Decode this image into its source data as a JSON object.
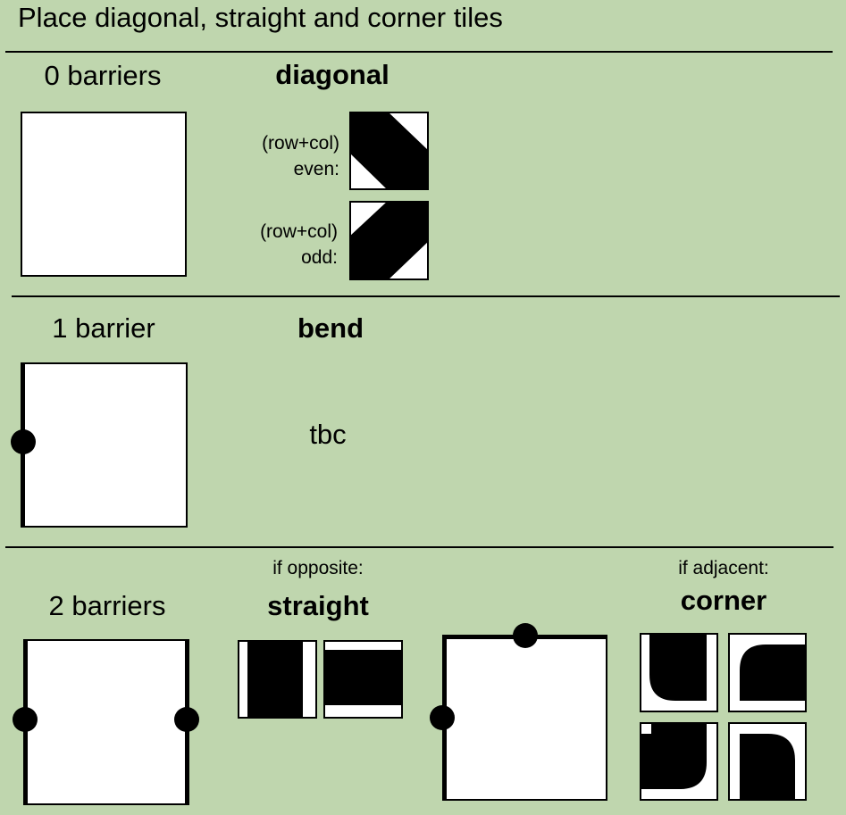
{
  "title": "Place diagonal, straight and corner tiles",
  "section_zero": {
    "heading": "0 barriers",
    "tile_heading": "diagonal",
    "even_label_1": "(row+col)",
    "even_label_2": "even:",
    "odd_label_1": "(row+col)",
    "odd_label_2": "odd:"
  },
  "section_one": {
    "heading": "1 barrier",
    "tile_heading": "bend",
    "note": "tbc"
  },
  "section_two": {
    "heading": "2 barriers",
    "opposite_caption": "if opposite:",
    "opposite_heading": "straight",
    "adjacent_caption": "if adjacent:",
    "adjacent_heading": "corner"
  },
  "colors": {
    "background": "#bfd6ae",
    "tile_fill": "#000000",
    "tile_background": "#ffffff"
  }
}
